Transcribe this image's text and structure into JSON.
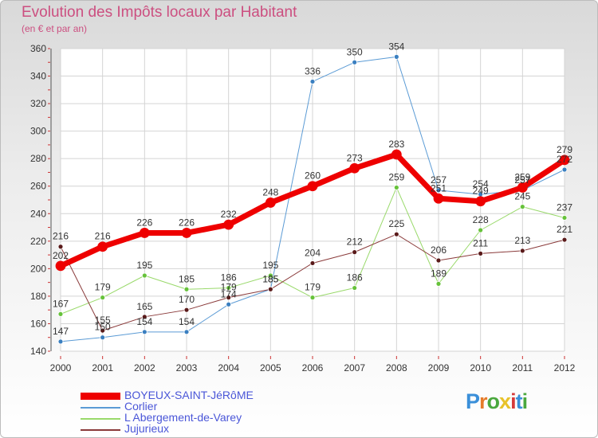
{
  "title": "Evolution des Impôts locaux par Habitant",
  "subtitle": "(en € et par an)",
  "logo": {
    "text": "Proxiti",
    "letter_colors": [
      "#3a8fd9",
      "#e57b2a",
      "#4aa83e",
      "#e8c22a",
      "#d63a3a",
      "#3a8fd9",
      "#4aa83e"
    ]
  },
  "chart_data": {
    "type": "line",
    "x": [
      "2000",
      "2001",
      "2002",
      "2003",
      "2004",
      "2005",
      "2006",
      "2007",
      "2008",
      "2009",
      "2010",
      "2011",
      "2012"
    ],
    "ylim": [
      140,
      360
    ],
    "yticks": [
      140,
      160,
      180,
      200,
      220,
      240,
      260,
      280,
      300,
      320,
      340,
      360
    ],
    "grid": true,
    "legend_position": "bottom-left",
    "series": [
      {
        "name": "Corlier",
        "color": "#5b9bd5",
        "line_width": 1,
        "marker_color": "#3a7fc0",
        "values": [
          147,
          150,
          154,
          154,
          174,
          185,
          336,
          350,
          354,
          257,
          254,
          257,
          272
        ],
        "labels": [
          "147",
          "150",
          "154",
          "154",
          "174",
          "185",
          "336",
          "350",
          "354",
          "257",
          "254",
          "257",
          "272"
        ]
      },
      {
        "name": "L  Abergement-de-Varey",
        "color": "#99d96a",
        "line_width": 1,
        "marker_color": "#66c23a",
        "values": [
          167,
          179,
          195,
          185,
          186,
          195,
          179,
          186,
          259,
          189,
          228,
          245,
          237
        ],
        "labels": [
          "167",
          "179",
          "195",
          "185",
          "186",
          "195",
          "179",
          "186",
          "259",
          "189",
          "228",
          "245",
          "237"
        ]
      },
      {
        "name": "Jujurieux",
        "color": "#8a3a3a",
        "line_width": 1,
        "marker_color": "#5a1a1a",
        "values": [
          216,
          155,
          165,
          170,
          179,
          185,
          204,
          212,
          225,
          206,
          211,
          213,
          221
        ],
        "labels": [
          "216",
          "155",
          "165",
          "170",
          "179",
          "185",
          "204",
          "212",
          "225",
          "206",
          "211",
          "213",
          "221"
        ]
      },
      {
        "name": "BOYEUX-SAINT-JéRôME",
        "color": "#ee0000",
        "line_width": 7,
        "marker_color": "#ee0000",
        "values": [
          202,
          216,
          226,
          226,
          232,
          248,
          260,
          273,
          283,
          251,
          249,
          259,
          279
        ],
        "labels": [
          "202",
          "216",
          "226",
          "226",
          "232",
          "248",
          "260",
          "273",
          "283",
          "251",
          "249",
          "259",
          "279"
        ]
      }
    ]
  },
  "legend": [
    {
      "label": "BOYEUX-SAINT-JéRôME",
      "color": "#ee0000",
      "thickness": "thick"
    },
    {
      "label": "Corlier",
      "color": "#5b9bd5",
      "thickness": "thin"
    },
    {
      "label": "L  Abergement-de-Varey",
      "color": "#99d96a",
      "thickness": "thin"
    },
    {
      "label": "Jujurieux",
      "color": "#8a3a3a",
      "thickness": "thin"
    }
  ]
}
